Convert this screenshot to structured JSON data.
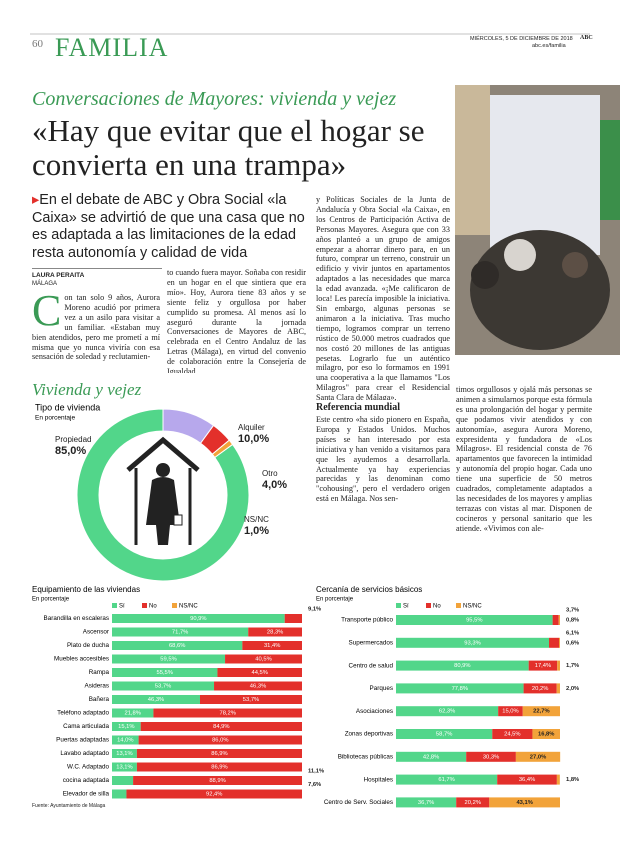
{
  "header": {
    "page": "60",
    "section": "FAMILIA",
    "date": "MIÉRCOLES, 5 DE DICIEMBRE DE 2018",
    "brand": "ABC",
    "url": "abc.es/familia"
  },
  "article": {
    "kicker": "Conversaciones de Mayores: vivienda y vejez",
    "headline": "«Hay que evitar que el hogar se convierta en una trampa»",
    "lede": "En el debate de ABC y Obra Social «la Caixa» se advirtió de que una casa que no es adaptada a las limitaciones de la edad resta autonomía y calidad de vida",
    "author": "LAURA PERAITA",
    "location": "MÁLAGA",
    "columns": [
      "Con tan solo 9 años, Aurora Moreno acudió por primera vez a un asilo para visitar a un familiar. «Estaban muy bien atendidos, pero me prometí a mí misma que yo nunca viviría con esa sensación de soledad y reclutamien-",
      "to cuando fuera mayor. Soñaba con residir en un hogar en el que sintiera que era mío». Hoy, Aurora tiene 83 años y se siente feliz y orgullosa por haber cumplido su promesa. Al menos así lo aseguró durante la jornada Conversaciones de Mayores de ABC, celebrada en el Centro Andaluz de las Letras (Málaga), en virtud del convenio de colaboración entre la Consejería de Igualdad",
      "y Políticas Sociales de la Junta de Andalucía y Obra Social «la Caixa», en los Centros de Participación Activa de Personas Mayores. Asegura que con 33 años planteó a un grupo de amigos empezar a ahorrar dinero para, en un futuro, comprar un terreno, construir un edificio y vivir juntos en apartamentos adaptados a las necesidades que marca la edad avanzada. «¡Me calificaron de loca! Les parecía imposible la iniciativa. Sin embargo, algunas personas se animaron a la iniciativa. Tras mucho tiempo, logramos comprar un terreno rústico de 50.000 metros cuadrados que nos costó 20 millones de las antiguas pesetas. Lograrlo fue un auténtico milagro, por eso lo formamos en 1991 una cooperativa a la que llamamos \"Los Milagros\" para crear el Residencial Santa Clara de Málaga».",
      "Este centro «ha sido pionero en España, Europa y Estados Unidos. Muchos países se han interesado por esta iniciativa y han venido a visitarnos para que les ayudemos a desarrollarla. Actualmente ya hay experiencias parecidas y las denominan como \"cohousing\", pero el verdadero origen está en Málaga. Nos sen-",
      "timos orgullosos y ojalá más personas se animen a simularnos porque esta fórmula es una prolongación del hogar y permite que podamos vivir atendidos y con autonomía», asegura Aurora Moreno, expresidenta y fundadora de «Los Milagros». El residencial consta de 76 apartamentos que favorecen la intimidad y autonomía del propio hogar. Cada uno tiene una superficie de 50 metros cuadrados, completamente adaptados a las necesidades de los mayores y amplias terrazas con vistas al mar. Disponen de cocineros y personal sanitario que les atiende. «Vivimos con ale-"
    ],
    "subhead": "Referencia mundial"
  },
  "graphic": {
    "title": "Vivienda y vejez",
    "source": "Fuente: Ayuntamiento de Málaga"
  },
  "chart_data": [
    {
      "type": "pie",
      "title": "Tipo de vivienda",
      "subtitle": "En porcentaje",
      "categories": [
        "Propiedad",
        "Alquiler",
        "Otro",
        "NS/NC"
      ],
      "values": [
        85.0,
        10.0,
        4.0,
        1.0
      ],
      "value_labels": [
        "85,0%",
        "10,0%",
        "4,0%",
        "1,0%"
      ],
      "colors": [
        "#52d68a",
        "#b7a8ec",
        "#e3302b",
        "#f2a33a"
      ]
    },
    {
      "type": "bar",
      "title": "Equipamiento de las viviendas",
      "subtitle": "En porcentaje",
      "orientation": "horizontal",
      "stacked": true,
      "xlim": [
        0,
        100
      ],
      "categories": [
        "Barandilla en escaleras",
        "Ascensor",
        "Plato de ducha",
        "Muebles accesibles",
        "Rampa",
        "Asideras",
        "Bañera",
        "Teléfono adaptado",
        "Cama articulada",
        "Puertas adaptadas",
        "Lavabo adaptado",
        "W.C. Adaptado",
        "cocina adaptada",
        "Elevador de silla"
      ],
      "series": [
        {
          "name": "Sí",
          "color": "#52d68a",
          "values": [
            90.9,
            71.7,
            68.6,
            59.5,
            55.5,
            53.7,
            46.3,
            21.8,
            15.1,
            14.0,
            13.1,
            13.1,
            11.1,
            7.6
          ],
          "value_labels": [
            "90,9%",
            "71,7%",
            "68,6%",
            "59,5%",
            "55,5%",
            "53,7%",
            "46,3%",
            "21,8%",
            "15,1%",
            "14,0%",
            "13,1%",
            "13,1%",
            "11,1%",
            "7,6%"
          ]
        },
        {
          "name": "No",
          "color": "#e3302b",
          "values": [
            9.1,
            28.3,
            31.4,
            40.5,
            44.5,
            46.3,
            53.7,
            78.2,
            84.9,
            86.0,
            86.9,
            86.9,
            88.9,
            92.4
          ],
          "value_labels": [
            "9,1%",
            "28,3%",
            "31,4%",
            "40,5%",
            "44,5%",
            "46,3%",
            "53,7%",
            "78,2%",
            "84,9%",
            "86,0%",
            "86,9%",
            "86,9%",
            "88,9%",
            "92,4%"
          ]
        },
        {
          "name": "NS/NC",
          "color": "#f2a33a",
          "values": [
            0,
            0,
            0,
            0,
            0,
            0,
            0,
            0,
            0,
            0,
            0,
            0,
            0,
            0
          ],
          "value_labels": [
            null,
            null,
            null,
            null,
            null,
            null,
            null,
            null,
            null,
            null,
            null,
            null,
            null,
            null
          ]
        }
      ]
    },
    {
      "type": "bar",
      "title": "Cercanía de servicios básicos",
      "subtitle": "En porcentaje",
      "orientation": "horizontal",
      "stacked": true,
      "xlim": [
        0,
        100
      ],
      "categories": [
        "Transporte público",
        "Supermercados",
        "Centro de salud",
        "Parques",
        "Asociaciones",
        "Zonas deportivas",
        "Bibliotecas públicas",
        "Hospitales",
        "Centro de Serv. Sociales"
      ],
      "series": [
        {
          "name": "Sí",
          "color": "#52d68a",
          "values": [
            95.5,
            93.3,
            80.9,
            77.8,
            62.3,
            58.7,
            42.8,
            61.7,
            36.7
          ],
          "value_labels": [
            "95,5%",
            "93,3%",
            "80,9%",
            "77,8%",
            "62,3%",
            "58,7%",
            "42,8%",
            "61,7%",
            "36,7%"
          ]
        },
        {
          "name": "No",
          "color": "#e3302b",
          "values": [
            3.7,
            6.1,
            17.4,
            20.2,
            15.0,
            24.5,
            30.3,
            36.4,
            20.2
          ],
          "value_labels": [
            "3,7%",
            "6,1%",
            "17,4%",
            "20,2%",
            "15,0%",
            "24,5%",
            "30,3%",
            "36,4%",
            "20,2%"
          ]
        },
        {
          "name": "NS/NC",
          "color": "#f2a33a",
          "values": [
            0.8,
            0.6,
            1.7,
            2.0,
            22.7,
            16.8,
            27.0,
            1.8,
            43.1
          ],
          "value_labels": [
            "0,8%",
            "0,6%",
            "1,7%",
            "2,0%",
            "22,7%",
            "16,8%",
            "27,0%",
            "1,8%",
            "43,1%"
          ]
        }
      ]
    }
  ]
}
